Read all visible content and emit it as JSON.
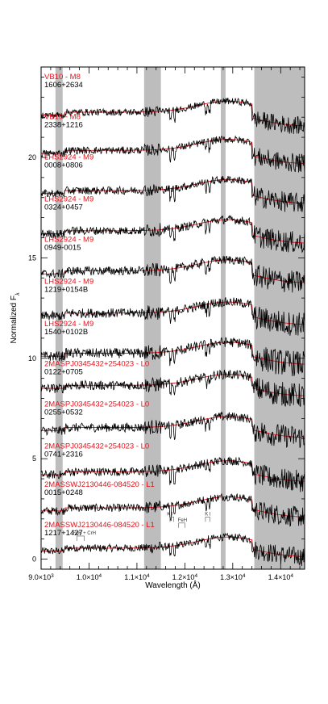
{
  "chart_data": {
    "type": "line",
    "title": "",
    "xlabel": "Wavelength (Å)",
    "ylabel": "Normalized F",
    "ylabel_sub": "λ",
    "xlim": [
      9000,
      14500
    ],
    "ylim": [
      -0.5,
      24.5
    ],
    "x_ticks": [
      {
        "value": 9000,
        "mantissa": "9.0×10",
        "exp": "3"
      },
      {
        "value": 10000,
        "mantissa": "1.0×10",
        "exp": "4"
      },
      {
        "value": 11000,
        "mantissa": "1.1×10",
        "exp": "4"
      },
      {
        "value": 12000,
        "mantissa": "1.2×10",
        "exp": "4"
      },
      {
        "value": 13000,
        "mantissa": "1.3×10",
        "exp": "4"
      },
      {
        "value": 14000,
        "mantissa": "1.4×10",
        "exp": "4"
      }
    ],
    "y_ticks": [
      {
        "value": 0,
        "label": "0"
      },
      {
        "value": 5,
        "label": "5"
      },
      {
        "value": 10,
        "label": "10"
      },
      {
        "value": 15,
        "label": "15"
      },
      {
        "value": 20,
        "label": "20"
      }
    ],
    "shaded_regions": [
      [
        9300,
        9450
      ],
      [
        11150,
        11500
      ],
      [
        12750,
        12850
      ],
      [
        13450,
        14500
      ]
    ],
    "feature_labels": [
      {
        "text": "FeH + CrH",
        "x": 9900,
        "y": 1.15,
        "tick_x": [
          9750,
          9900
        ]
      },
      {
        "text": "K I",
        "x": 11690,
        "y": 2.1,
        "tick_x": [
          11690,
          11770
        ]
      },
      {
        "text": "FeH",
        "x": 11950,
        "y": 1.8,
        "tick_x": [
          11870,
          12000
        ]
      },
      {
        "text": "K I",
        "x": 12480,
        "y": 2.1,
        "tick_x": [
          12430,
          12520
        ]
      }
    ],
    "series": [
      {
        "name": "1217+1427",
        "template": "2MASSWJ2130446-084520 - L1",
        "offset": 0.7
      },
      {
        "name": "0015+0248",
        "template": "2MASSWJ2130446-084520 - L1",
        "offset": 2.7
      },
      {
        "name": "0741+2316",
        "template": "2MASPJ0345432+254023 - L0",
        "offset": 4.5
      },
      {
        "name": "0255+0532",
        "template": "2MASPJ0345432+254023 - L0",
        "offset": 6.7
      },
      {
        "name": "0122+0705",
        "template": "2MASPJ0345432+254023 - L0",
        "offset": 8.8
      },
      {
        "name": "1540+0102B",
        "template": "LHS2924 - M9",
        "offset": 10.4
      },
      {
        "name": "1219+0154B",
        "template": "LHS2924 - M9",
        "offset": 12.4
      },
      {
        "name": "0949-0015",
        "template": "LHS2924 - M9",
        "offset": 14.5
      },
      {
        "name": "0324+0457",
        "template": "LHS2924 - M9",
        "offset": 16.5
      },
      {
        "name": "0008+0806",
        "template": "LHS2924 - M9",
        "offset": 18.5
      },
      {
        "name": "2338+1216",
        "template": "VB10 - M8",
        "offset": 20.5
      },
      {
        "name": "1606+2634",
        "template": "VB10 - M8",
        "offset": 22.4
      }
    ],
    "labels": [
      {
        "template": "VB10 - M8",
        "name": "1606+2634",
        "y": 23.9
      },
      {
        "template": "VB10 - M8",
        "name": "2338+1216",
        "y": 21.9
      },
      {
        "template": "LHS2924 - M9",
        "name": "0008+0806",
        "y": 19.9
      },
      {
        "template": "LHS2924 - M9",
        "name": "0324+0457",
        "y": 17.8
      },
      {
        "template": "LHS2924 - M9",
        "name": "0949-0015",
        "y": 15.8
      },
      {
        "template": "LHS2924 - M9",
        "name": "1219+0154B",
        "y": 13.7
      },
      {
        "template": "LHS2924 - M9",
        "name": "1540+0102B",
        "y": 11.6
      },
      {
        "template": "2MASPJ0345432+254023 - L0",
        "name": "0122+0705",
        "y": 9.6
      },
      {
        "template": "2MASPJ0345432+254023 - L0",
        "name": "0255+0532",
        "y": 7.6
      },
      {
        "template": "2MASPJ0345432+254023 - L0",
        "name": "0741+2316",
        "y": 5.5
      },
      {
        "template": "2MASSWJ2130446-084520 - L1",
        "name": "0015+0248",
        "y": 3.6
      },
      {
        "template": "2MASSWJ2130446-084520 - L1",
        "name": "1217+1427",
        "y": 1.6
      }
    ],
    "grid": false,
    "legend": "none",
    "colors": {
      "observed": "#000000",
      "template": "#e8101a",
      "shade": "#bdbdbd"
    }
  }
}
